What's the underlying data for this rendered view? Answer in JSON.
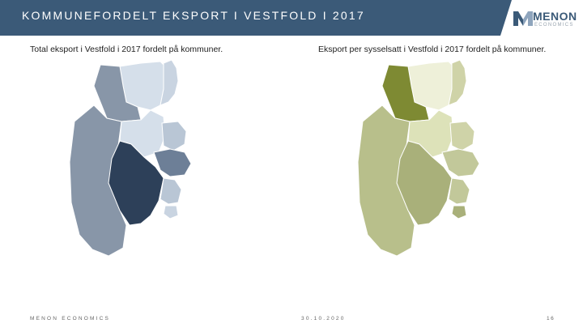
{
  "header": {
    "title": "KOMMUNEFORDELT EKSPORT I VESTFOLD I 2017"
  },
  "logo": {
    "word": "MENON",
    "sub": "ECONOMICS",
    "colors": {
      "mark_dark": "#3b5a78",
      "mark_light": "#8fa5bd"
    }
  },
  "maps": {
    "left": {
      "title": "Total eksport i Vestfold i 2017 fordelt på kommuner.",
      "colors": {
        "north_east": "#d5dfea",
        "north_far_east": "#c9d4e1",
        "north_west": "#8896a8",
        "west_large": "#8896a8",
        "center_north": "#d5dfea",
        "east_upper": "#b9c6d5",
        "east_mid": "#6d7f97",
        "center_south": "#2d4059",
        "south_east": "#b9c6d5",
        "south_east_tip": "#c9d4e1"
      }
    },
    "right": {
      "title": "Eksport per sysselsatt i Vestfold i 2017 fordelt på kommuner.",
      "colors": {
        "north_east": "#eef0d9",
        "north_far_east": "#cfd3a8",
        "north_west": "#7e8a33",
        "west_large": "#b8bf8b",
        "center_north": "#dde2b9",
        "east_upper": "#cfd3a8",
        "east_mid": "#c2c89a",
        "center_south": "#a9b07a",
        "south_east": "#c2c89a",
        "south_east_tip": "#a9b07a"
      }
    }
  },
  "footer": {
    "brand": "MENON ECONOMICS",
    "date": "30.10.2020",
    "page": "16"
  }
}
